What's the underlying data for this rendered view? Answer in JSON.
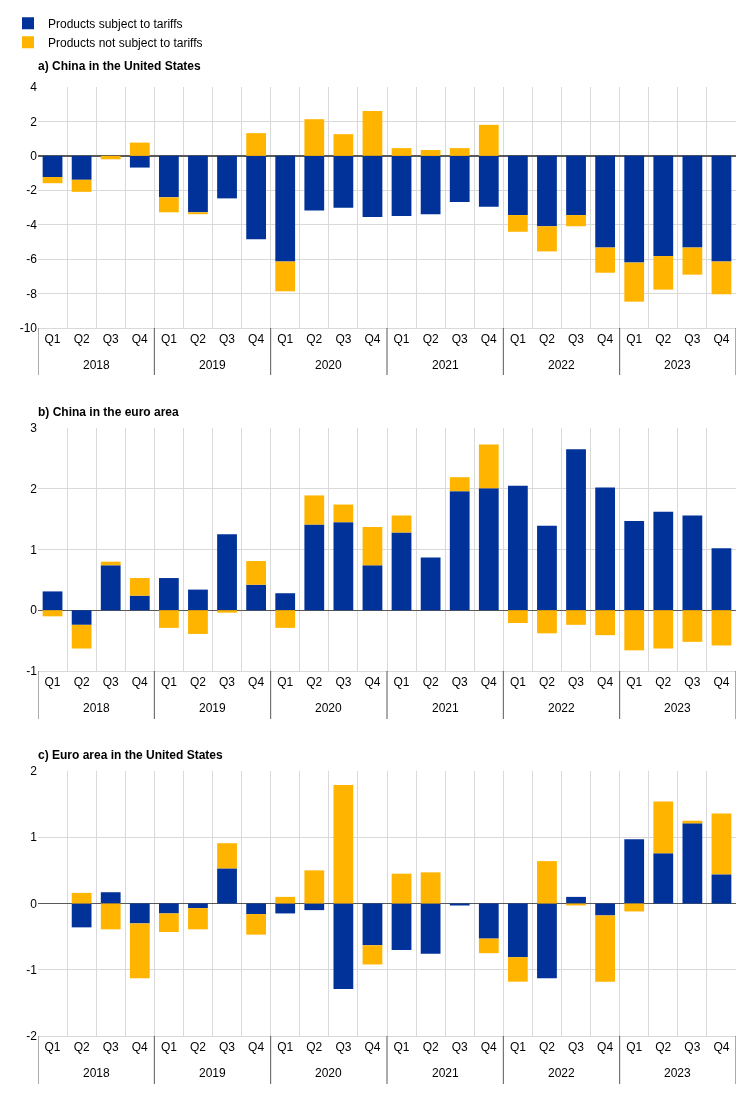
{
  "chart_data": [
    {
      "type": "bar",
      "title": "a) China in the United States",
      "stacked": true,
      "grid": true,
      "legend": "top left",
      "categories": [
        "Q1",
        "Q2",
        "Q3",
        "Q4",
        "Q1",
        "Q2",
        "Q3",
        "Q4",
        "Q1",
        "Q2",
        "Q3",
        "Q4",
        "Q1",
        "Q2",
        "Q3",
        "Q4",
        "Q1",
        "Q2",
        "Q3",
        "Q4",
        "Q1",
        "Q2",
        "Q3",
        "Q4"
      ],
      "annotations": [
        "2018",
        "2019",
        "2020",
        "2021",
        "2022",
        "2023"
      ],
      "ylim": [
        -10,
        4
      ],
      "yticks": [
        -10,
        -8,
        -6,
        -4,
        -2,
        0,
        2,
        4
      ],
      "series": [
        {
          "name": "Products subject to tariffs",
          "color": "#003299",
          "values": [
            -1.23,
            -1.39,
            0,
            -0.68,
            -2.41,
            -3.28,
            -2.47,
            -4.85,
            -6.14,
            -3.17,
            -3.01,
            -3.55,
            -3.5,
            -3.39,
            -2.68,
            -2.95,
            -3.44,
            -4.09,
            -3.44,
            -5.33,
            -6.2,
            -5.82,
            -5.33,
            -6.14
          ]
        },
        {
          "name": "Products not subject to tariffs",
          "color": "#ffb400",
          "values": [
            -0.36,
            -0.7,
            -0.2,
            0.77,
            -0.87,
            -0.11,
            0,
            1.32,
            -1.73,
            2.13,
            1.26,
            2.61,
            0.45,
            0.34,
            0.45,
            1.8,
            -0.97,
            -1.46,
            -0.65,
            -1.46,
            -2.27,
            -1.95,
            -1.57,
            -1.9
          ]
        }
      ]
    },
    {
      "type": "bar",
      "title": "b) China in the euro area",
      "stacked": true,
      "grid": true,
      "categories": [
        "Q1",
        "Q2",
        "Q3",
        "Q4",
        "Q1",
        "Q2",
        "Q3",
        "Q4",
        "Q1",
        "Q2",
        "Q3",
        "Q4",
        "Q1",
        "Q2",
        "Q3",
        "Q4",
        "Q1",
        "Q2",
        "Q3",
        "Q4",
        "Q1",
        "Q2",
        "Q3",
        "Q4"
      ],
      "annotations": [
        "2018",
        "2019",
        "2020",
        "2021",
        "2022",
        "2023"
      ],
      "ylim": [
        -1,
        3
      ],
      "yticks": [
        -1,
        0,
        1,
        2,
        3
      ],
      "series": [
        {
          "color": "#003299",
          "values": [
            0.31,
            -0.24,
            0.74,
            0.24,
            0.53,
            0.34,
            1.25,
            0.42,
            0.28,
            1.41,
            1.45,
            0.74,
            1.28,
            0.87,
            1.96,
            2.01,
            2.05,
            1.39,
            2.65,
            2.02,
            1.47,
            1.62,
            1.56,
            1.02
          ]
        },
        {
          "color": "#ffb400",
          "values": [
            -0.1,
            -0.39,
            0.06,
            0.29,
            -0.29,
            -0.39,
            -0.04,
            0.39,
            -0.29,
            0.48,
            0.29,
            0.63,
            0.28,
            0,
            0.23,
            0.72,
            -0.21,
            -0.38,
            -0.24,
            -0.41,
            -0.66,
            -0.63,
            -0.52,
            -0.58
          ]
        }
      ]
    },
    {
      "type": "bar",
      "title": "c) Euro area in the United States",
      "stacked": true,
      "grid": true,
      "categories": [
        "Q1",
        "Q2",
        "Q3",
        "Q4",
        "Q1",
        "Q2",
        "Q3",
        "Q4",
        "Q1",
        "Q2",
        "Q3",
        "Q4",
        "Q1",
        "Q2",
        "Q3",
        "Q4",
        "Q1",
        "Q2",
        "Q3",
        "Q4",
        "Q1",
        "Q2",
        "Q3",
        "Q4"
      ],
      "annotations": [
        "2018",
        "2019",
        "2020",
        "2021",
        "2022",
        "2023"
      ],
      "ylim": [
        -2,
        2
      ],
      "yticks": [
        -2,
        -1,
        0,
        1,
        2
      ],
      "series": [
        {
          "color": "#003299",
          "values": [
            0,
            -0.36,
            0.17,
            -0.3,
            -0.15,
            -0.07,
            0.53,
            -0.16,
            -0.15,
            -0.1,
            -1.29,
            -0.63,
            -0.7,
            -0.76,
            -0.03,
            -0.53,
            -0.81,
            -1.13,
            0.1,
            -0.18,
            0.97,
            0.76,
            1.21,
            0.44
          ]
        },
        {
          "color": "#ffb400",
          "values": [
            0,
            0.16,
            -0.39,
            -0.83,
            -0.28,
            -0.32,
            0.38,
            -0.31,
            0.1,
            0.5,
            1.79,
            -0.29,
            0.45,
            0.47,
            0,
            -0.22,
            -0.37,
            0.64,
            -0.03,
            -1.0,
            -0.12,
            0.78,
            0.04,
            0.92
          ]
        }
      ]
    }
  ]
}
